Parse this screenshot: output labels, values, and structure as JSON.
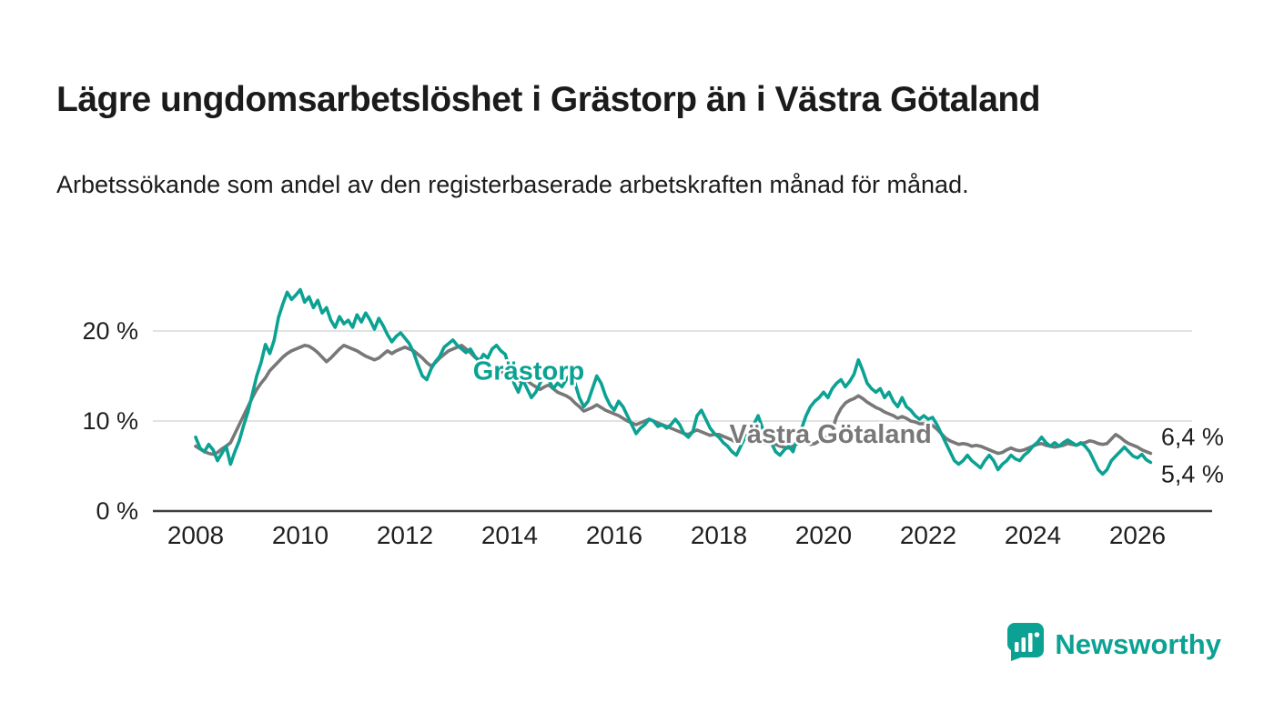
{
  "title": "Lägre ungdomsarbetslöshet i Grästorp än i Västra Götaland",
  "subtitle": "Arbetssökande som andel av den registerbaserade arbetskraften månad för månad.",
  "colors": {
    "accent_teal": "#0BA293",
    "series_gray": "#787878",
    "axis_text": "#1f1f1f",
    "gridline": "#d9d9d9",
    "axis_line": "#3f3f3f"
  },
  "branding": {
    "logo_text": "Newsworthy",
    "logo_icon": "bar-chart-bubble-icon",
    "logo_color": "#0BA293"
  },
  "chart_data": {
    "type": "line",
    "x_start_year": 2008,
    "points_per_year": 12,
    "x_end": 2026.25,
    "ylim": [
      0,
      26
    ],
    "grid": "horizontal",
    "yticks": [
      {
        "value": 0,
        "label": "0 %"
      },
      {
        "value": 10,
        "label": "10 %"
      },
      {
        "value": 20,
        "label": "20 %"
      }
    ],
    "xticks": [
      2008,
      2010,
      2012,
      2014,
      2016,
      2018,
      2020,
      2022,
      2024,
      2026
    ],
    "annotations": [
      {
        "text": "Grästorp",
        "x": 2013.3,
        "y": 14.6,
        "color": "#0BA293"
      },
      {
        "text": "Västra Götaland",
        "x": 2018.2,
        "y": 7.6,
        "color": "#787878"
      }
    ],
    "series": [
      {
        "name": "Grästorp",
        "color": "#0BA293",
        "end_label": "5,4 %",
        "end_label_pos": {
          "x": 2026.45,
          "y": 3.2
        },
        "values": [
          8.2,
          7.0,
          6.6,
          7.4,
          6.8,
          5.6,
          6.4,
          7.2,
          5.2,
          6.6,
          7.8,
          9.5,
          11.0,
          13.0,
          15.0,
          16.5,
          18.5,
          17.5,
          19.0,
          21.5,
          23.0,
          24.3,
          23.5,
          24.0,
          24.6,
          23.2,
          23.8,
          22.6,
          23.4,
          22.0,
          22.6,
          21.2,
          20.4,
          21.6,
          20.8,
          21.2,
          20.4,
          21.8,
          21.0,
          22.0,
          21.2,
          20.2,
          21.4,
          20.6,
          19.6,
          18.8,
          19.4,
          19.8,
          19.2,
          18.6,
          17.6,
          16.2,
          15.0,
          14.6,
          15.8,
          16.6,
          17.2,
          18.2,
          18.6,
          19.0,
          18.4,
          18.0,
          17.6,
          18.0,
          17.2,
          16.6,
          17.4,
          17.0,
          18.0,
          18.4,
          17.8,
          17.4,
          15.8,
          14.2,
          13.2,
          14.6,
          13.6,
          12.6,
          13.2,
          14.2,
          15.2,
          14.6,
          13.6,
          14.2,
          13.8,
          14.6,
          15.2,
          14.2,
          12.6,
          11.6,
          12.2,
          13.6,
          15.0,
          14.2,
          12.8,
          11.8,
          11.2,
          12.2,
          11.6,
          10.6,
          9.6,
          8.6,
          9.2,
          9.6,
          10.2,
          10.0,
          9.4,
          9.6,
          9.2,
          9.6,
          10.2,
          9.6,
          8.6,
          8.2,
          8.8,
          10.6,
          11.2,
          10.2,
          9.2,
          8.6,
          8.2,
          7.6,
          7.2,
          6.6,
          6.2,
          7.2,
          8.2,
          8.8,
          9.6,
          10.6,
          9.2,
          8.2,
          7.6,
          6.6,
          6.2,
          6.8,
          7.2,
          6.6,
          8.2,
          9.2,
          10.6,
          11.6,
          12.2,
          12.6,
          13.2,
          12.6,
          13.6,
          14.2,
          14.6,
          13.8,
          14.4,
          15.2,
          16.8,
          15.6,
          14.2,
          13.6,
          13.2,
          13.6,
          12.6,
          13.2,
          12.2,
          11.6,
          12.6,
          11.6,
          11.2,
          10.6,
          10.2,
          10.6,
          10.2,
          10.4,
          9.6,
          8.6,
          7.6,
          6.6,
          5.6,
          5.2,
          5.6,
          6.2,
          5.6,
          5.2,
          4.8,
          5.6,
          6.2,
          5.6,
          4.6,
          5.2,
          5.6,
          6.2,
          5.8,
          5.6,
          6.2,
          6.6,
          7.2,
          7.6,
          8.2,
          7.6,
          7.2,
          7.6,
          7.2,
          7.6,
          7.9,
          7.6,
          7.3,
          7.6,
          7.2,
          6.6,
          5.6,
          4.6,
          4.1,
          4.6,
          5.6,
          6.1,
          6.6,
          7.1,
          6.6,
          6.1,
          5.9,
          6.3,
          5.7,
          5.4
        ]
      },
      {
        "name": "Västra Götaland",
        "color": "#787878",
        "end_label": "6,4 %",
        "end_label_pos": {
          "x": 2026.45,
          "y": 7.3
        },
        "values": [
          7.2,
          6.9,
          6.6,
          6.4,
          6.3,
          6.5,
          6.9,
          7.2,
          7.6,
          8.6,
          9.6,
          10.6,
          11.6,
          12.6,
          13.5,
          14.2,
          14.8,
          15.6,
          16.1,
          16.6,
          17.1,
          17.5,
          17.8,
          18.0,
          18.2,
          18.4,
          18.3,
          18.0,
          17.6,
          17.1,
          16.6,
          17.0,
          17.5,
          18.0,
          18.4,
          18.2,
          18.0,
          17.8,
          17.5,
          17.2,
          17.0,
          16.8,
          17.0,
          17.4,
          17.8,
          17.5,
          17.8,
          18.0,
          18.2,
          18.0,
          17.8,
          17.4,
          17.0,
          16.5,
          16.1,
          16.5,
          17.0,
          17.4,
          17.8,
          18.0,
          18.2,
          18.4,
          18.0,
          17.6,
          17.1,
          16.8,
          16.5,
          16.3,
          16.0,
          15.8,
          15.5,
          15.2,
          15.0,
          14.8,
          14.5,
          14.3,
          14.5,
          14.1,
          13.8,
          13.5,
          13.8,
          14.0,
          13.6,
          13.2,
          13.0,
          12.8,
          12.5,
          12.0,
          11.6,
          11.1,
          11.3,
          11.5,
          11.8,
          11.5,
          11.2,
          11.0,
          10.8,
          10.6,
          10.3,
          10.0,
          9.8,
          9.6,
          9.8,
          10.0,
          10.2,
          10.0,
          9.8,
          9.6,
          9.4,
          9.2,
          9.0,
          8.8,
          8.6,
          8.5,
          8.8,
          9.0,
          8.8,
          8.6,
          8.4,
          8.5,
          8.5,
          8.3,
          8.1,
          7.9,
          7.6,
          7.8,
          8.0,
          8.2,
          8.0,
          7.8,
          7.6,
          7.5,
          7.5,
          7.4,
          7.2,
          7.1,
          7.0,
          7.2,
          7.5,
          7.8,
          7.6,
          7.4,
          7.5,
          7.8,
          8.0,
          8.3,
          9.0,
          10.5,
          11.4,
          12.0,
          12.3,
          12.5,
          12.8,
          12.5,
          12.1,
          11.8,
          11.5,
          11.3,
          11.0,
          10.8,
          10.6,
          10.3,
          10.5,
          10.3,
          10.0,
          9.9,
          9.7,
          9.7,
          9.8,
          9.5,
          9.1,
          8.6,
          8.1,
          7.8,
          7.6,
          7.4,
          7.5,
          7.4,
          7.2,
          7.3,
          7.2,
          7.0,
          6.8,
          6.6,
          6.4,
          6.5,
          6.8,
          7.0,
          6.8,
          6.7,
          6.8,
          7.0,
          7.2,
          7.4,
          7.5,
          7.3,
          7.2,
          7.1,
          7.2,
          7.3,
          7.5,
          7.4,
          7.3,
          7.5,
          7.6,
          7.8,
          7.7,
          7.5,
          7.4,
          7.5,
          8.0,
          8.5,
          8.2,
          7.8,
          7.5,
          7.3,
          7.1,
          6.8,
          6.6,
          6.4
        ]
      }
    ]
  }
}
